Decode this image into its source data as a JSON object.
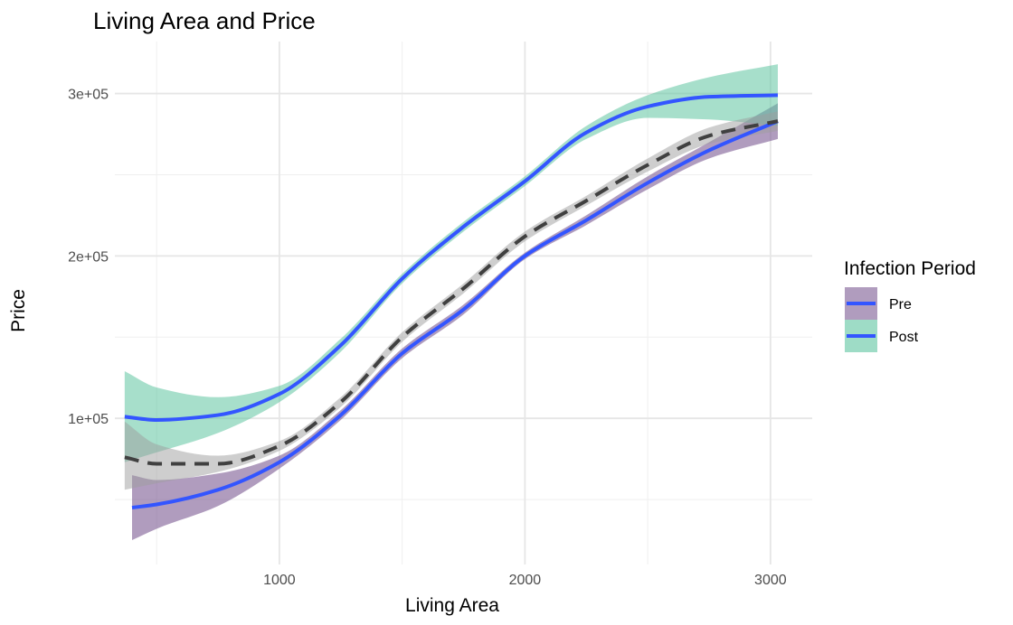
{
  "chart_data": {
    "type": "line",
    "title": "Living Area and Price",
    "xlabel": "Living Area",
    "ylabel": "Price",
    "xlim": [
      330,
      3170
    ],
    "ylim": [
      10000,
      332000
    ],
    "x_ticks": [
      1000,
      2000,
      3000
    ],
    "x_tick_labels": [
      "1000",
      "2000",
      "3000"
    ],
    "x_minor_ticks": [
      500,
      1500,
      2500
    ],
    "y_ticks": [
      100000,
      200000,
      300000
    ],
    "y_tick_labels": [
      "1e+05",
      "2e+05",
      "3e+05"
    ],
    "y_minor_ticks": [
      50000,
      150000,
      250000
    ],
    "grid": true,
    "legend": {
      "title": "Infection Period",
      "position": "right",
      "entries": [
        {
          "label": "Pre",
          "fill": "#7b5a93",
          "line": "#3355ff"
        },
        {
          "label": "Post",
          "fill": "#5ec4a0",
          "line": "#3355ff"
        }
      ]
    },
    "series": [
      {
        "name": "Pre",
        "color": "#3355ff",
        "ribbon_color": "#7b5a93",
        "ribbon_opacity": 0.6,
        "x": [
          400,
          500,
          750,
          1000,
          1250,
          1500,
          1750,
          2000,
          2250,
          2500,
          2750,
          3030
        ],
        "y": [
          45000,
          47000,
          56000,
          73000,
          102000,
          140000,
          167000,
          200000,
          222000,
          245000,
          265000,
          283000
        ],
        "lower": [
          25000,
          32000,
          46000,
          69000,
          99000,
          137000,
          164000,
          198000,
          219000,
          241000,
          260000,
          272000
        ],
        "upper": [
          65000,
          62000,
          66000,
          77000,
          105000,
          143000,
          170000,
          202000,
          225000,
          249000,
          270000,
          294000
        ]
      },
      {
        "name": "Post",
        "color": "#3355ff",
        "ribbon_color": "#5ec4a0",
        "ribbon_opacity": 0.55,
        "x": [
          370,
          500,
          750,
          1000,
          1250,
          1500,
          1750,
          2000,
          2250,
          2500,
          2750,
          3030
        ],
        "y": [
          101000,
          99000,
          102000,
          115000,
          145000,
          186000,
          218000,
          246000,
          276000,
          292000,
          298000,
          299000
        ],
        "lower": [
          73000,
          79000,
          91000,
          110000,
          141000,
          183000,
          215000,
          243000,
          272000,
          285000,
          284000,
          280000
        ],
        "upper": [
          129000,
          119000,
          113000,
          120000,
          149000,
          189000,
          221000,
          249000,
          280000,
          299000,
          310000,
          318000
        ]
      },
      {
        "name": "",
        "color": "#404040",
        "dashed": true,
        "ribbon_color": "#9e9e9e",
        "ribbon_opacity": 0.5,
        "x": [
          370,
          500,
          750,
          1000,
          1250,
          1500,
          1750,
          2000,
          2250,
          2500,
          2750,
          3030
        ],
        "y": [
          76000,
          72000,
          72000,
          83000,
          110000,
          150000,
          180000,
          212000,
          234000,
          256000,
          274000,
          283000
        ],
        "lower": [
          56000,
          60000,
          67000,
          80000,
          107000,
          147000,
          177000,
          209000,
          231000,
          252000,
          269000,
          277000
        ],
        "upper": [
          98000,
          84000,
          77000,
          86000,
          113000,
          153000,
          183000,
          215000,
          237000,
          260000,
          279000,
          289000
        ]
      }
    ]
  }
}
